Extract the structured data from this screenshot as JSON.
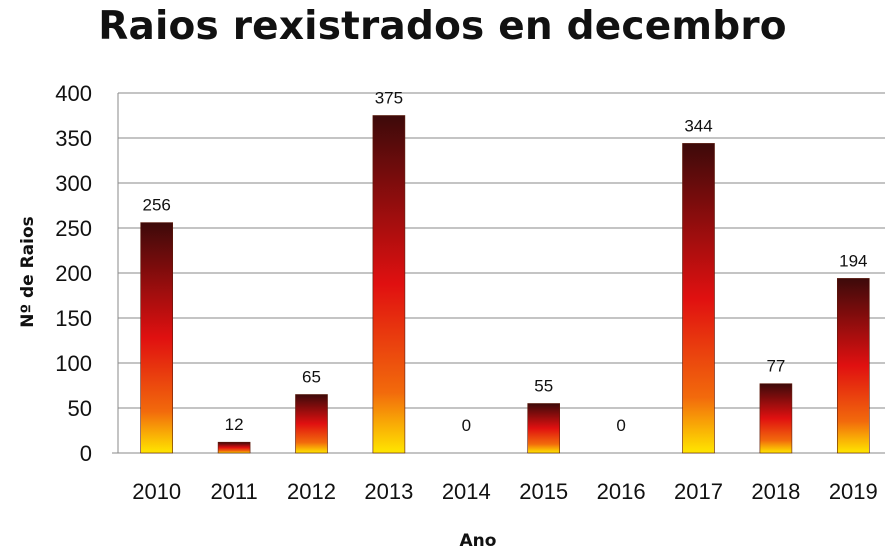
{
  "chart_data": {
    "type": "bar",
    "title": "Raios rexistrados en decembro",
    "xlabel": "Ano",
    "ylabel": "Nº de Raios",
    "categories": [
      "2010",
      "2011",
      "2012",
      "2013",
      "2014",
      "2015",
      "2016",
      "2017",
      "2018",
      "2019"
    ],
    "values": [
      256,
      12,
      65,
      375,
      0,
      55,
      0,
      344,
      77,
      194
    ],
    "data_labels": [
      "256",
      "12",
      "65",
      "375",
      "0",
      "55",
      "0",
      "344",
      "77",
      "194"
    ],
    "ylim": [
      0,
      400
    ],
    "yticks": [
      0,
      50,
      100,
      150,
      200,
      250,
      300,
      350,
      400
    ],
    "grid": true,
    "legend": "none",
    "colors": {
      "top": "#3d0a0a",
      "mid": "#e01010",
      "bottom": "#ffe600",
      "grid": "#8a8a8a"
    }
  }
}
